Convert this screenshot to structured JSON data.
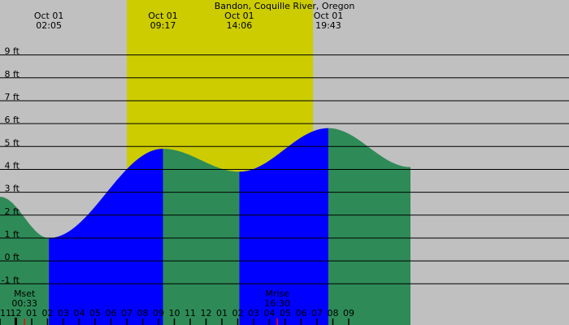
{
  "chart_data": {
    "type": "area",
    "title": "Bandon, Coquille River, Oregon",
    "y_unit": "ft",
    "y_ticks": [
      {
        "value": 9,
        "label": "9 ft"
      },
      {
        "value": 8,
        "label": "8 ft"
      },
      {
        "value": 7,
        "label": "7 ft"
      },
      {
        "value": 6,
        "label": "6 ft"
      },
      {
        "value": 5,
        "label": "5 ft"
      },
      {
        "value": 4,
        "label": "4 ft"
      },
      {
        "value": 3,
        "label": "3 ft"
      },
      {
        "value": 2,
        "label": "2 ft"
      },
      {
        "value": 1,
        "label": "1 ft"
      },
      {
        "value": 0,
        "label": "0 ft"
      },
      {
        "value": -1,
        "label": "-1 ft"
      }
    ],
    "x_range_hours": [
      -1.0,
      34.9
    ],
    "y_range_ft": [
      -2.8,
      11.4
    ],
    "grid": true,
    "x_ticks": [
      {
        "hour": -1,
        "label": "11"
      },
      {
        "hour": 0,
        "label": "12"
      },
      {
        "hour": 1,
        "label": "01"
      },
      {
        "hour": 2,
        "label": "02"
      },
      {
        "hour": 3,
        "label": "03"
      },
      {
        "hour": 4,
        "label": "04"
      },
      {
        "hour": 5,
        "label": "05"
      },
      {
        "hour": 6,
        "label": "06"
      },
      {
        "hour": 7,
        "label": "07"
      },
      {
        "hour": 8,
        "label": "08"
      },
      {
        "hour": 9,
        "label": "09"
      },
      {
        "hour": 10,
        "label": "10"
      },
      {
        "hour": 11,
        "label": "11"
      },
      {
        "hour": 12,
        "label": "12"
      },
      {
        "hour": 13,
        "label": "01"
      },
      {
        "hour": 14,
        "label": "02"
      },
      {
        "hour": 15,
        "label": "03"
      },
      {
        "hour": 16,
        "label": "04"
      },
      {
        "hour": 17,
        "label": "05"
      },
      {
        "hour": 18,
        "label": "06"
      },
      {
        "hour": 19,
        "label": "07"
      },
      {
        "hour": 20,
        "label": "08"
      },
      {
        "hour": 21,
        "label": "09"
      }
    ],
    "tide_extremes": [
      {
        "date": "Oct 01",
        "time": "02:05",
        "hour": 2.083,
        "height_ft": 1.0,
        "kind": "low"
      },
      {
        "date": "Oct 01",
        "time": "09:17",
        "hour": 9.283,
        "height_ft": 4.9,
        "kind": "high"
      },
      {
        "date": "Oct 01",
        "time": "14:06",
        "hour": 14.1,
        "height_ft": 3.9,
        "kind": "low"
      },
      {
        "date": "Oct 01",
        "time": "19:43",
        "hour": 19.717,
        "height_ft": 5.8,
        "kind": "high"
      }
    ],
    "tide_series": {
      "hours": [
        -1.0,
        2.083,
        9.283,
        14.1,
        19.717,
        24.9
      ],
      "heights_ft": [
        2.8,
        1.0,
        4.9,
        3.9,
        5.8,
        4.1
      ]
    },
    "daylight": {
      "start_hour": 7.0,
      "end_hour": 18.75
    },
    "moon_events": [
      {
        "label": "Mset",
        "time": "00:33",
        "hour": 0.55
      },
      {
        "label": "Mrise",
        "time": "16:30",
        "hour": 16.5
      }
    ],
    "colors": {
      "night": "#c0c0c0",
      "day": "#cccc00",
      "falling_tide": "#2e8b57",
      "rising_tide": "#0000ff",
      "grid": "#000000",
      "moon_marker": "#ff0000"
    }
  }
}
